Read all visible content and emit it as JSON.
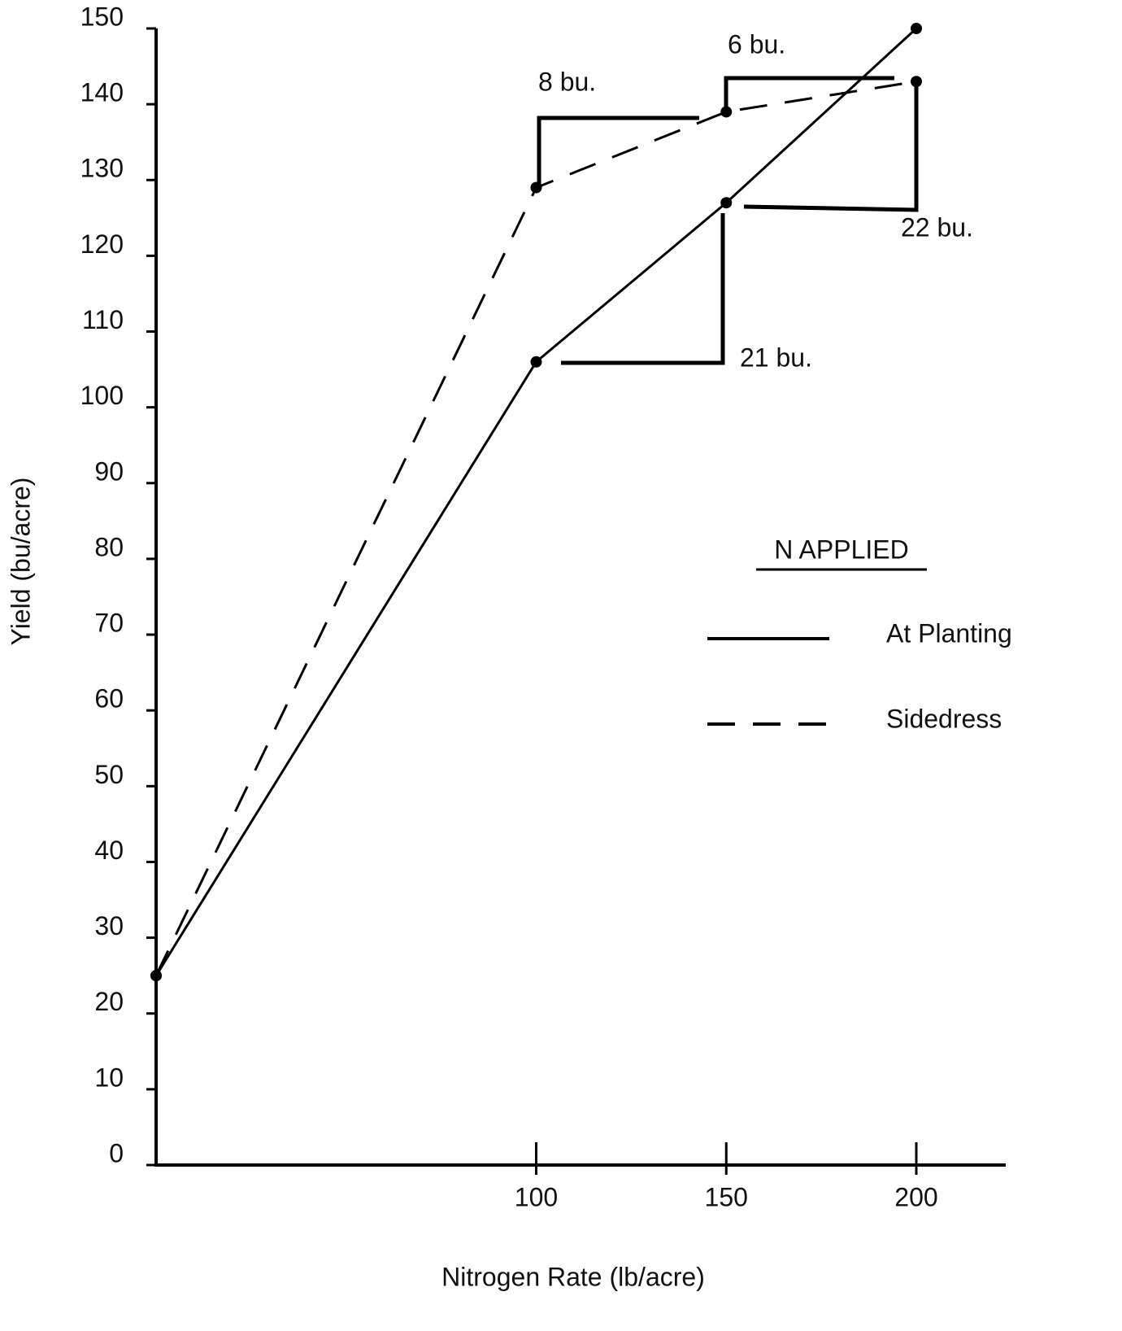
{
  "chart_data": {
    "type": "line",
    "x_label": "Nitrogen Rate (lb/acre)",
    "y_label": "Yield (bu/acre)",
    "x": [
      0,
      100,
      150,
      200
    ],
    "series": [
      {
        "name": "At Planting",
        "color": "#000000",
        "style": "solid",
        "values": [
          25,
          106,
          127,
          150
        ]
      },
      {
        "name": "Sidedress",
        "color": "#000000",
        "style": "dashed",
        "values": [
          25,
          129,
          139,
          143
        ]
      }
    ],
    "xlim": [
      0,
      225
    ],
    "xticks": [
      100,
      150,
      200
    ],
    "ylim": [
      0,
      150
    ],
    "yticks": [
      0,
      10,
      20,
      30,
      40,
      50,
      60,
      70,
      80,
      90,
      100,
      110,
      120,
      130,
      140,
      150
    ],
    "legend_title": "N APPLIED",
    "annotations": [
      "8 bu.",
      "6 bu.",
      "22 bu.",
      "21 bu."
    ]
  }
}
